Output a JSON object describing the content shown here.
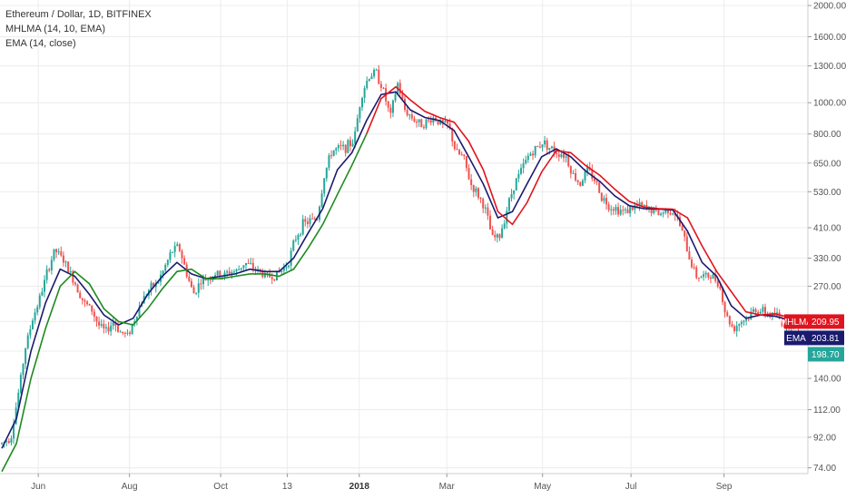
{
  "legend": {
    "title": "Ethereum / Dollar, 1D, BITFINEX",
    "line2": "MHLMA (14, 10, EMA)",
    "line3": "EMA (14, close)"
  },
  "chart_data": {
    "type": "line",
    "yscale": "log",
    "ylim": [
      71,
      2080
    ],
    "grid": true,
    "y_ticks": [
      "74.00",
      "92.00",
      "112.00",
      "140.00",
      "170.00",
      "210.00",
      "270.00",
      "330.00",
      "410.00",
      "530.00",
      "650.00",
      "800.00",
      "1000.00",
      "1300.00",
      "1600.00",
      "2000.00"
    ],
    "x_ticks": [
      {
        "label": "Jun",
        "bold": false
      },
      {
        "label": "Aug",
        "bold": false
      },
      {
        "label": "Oct",
        "bold": false
      },
      {
        "label": "13",
        "bold": false
      },
      {
        "label": "2018",
        "bold": true
      },
      {
        "label": "Mar",
        "bold": false
      },
      {
        "label": "May",
        "bold": false
      },
      {
        "label": "Jul",
        "bold": false
      },
      {
        "label": "Sep",
        "bold": false
      }
    ],
    "x_ticks_index": [
      40,
      140,
      240,
      313,
      392,
      488,
      593,
      690,
      792
    ],
    "x_range_index": [
      0,
      880
    ],
    "colors": {
      "up": "#26a69a",
      "down": "#ef5350",
      "ema": "#1a1a6e",
      "mhlma_up": "#1f8a1f",
      "mhlma_down": "#e0141e"
    },
    "close_series": [
      [
        0,
        88
      ],
      [
        10,
        92
      ],
      [
        18,
        125
      ],
      [
        26,
        175
      ],
      [
        34,
        215
      ],
      [
        42,
        250
      ],
      [
        50,
        300
      ],
      [
        58,
        350
      ],
      [
        66,
        330
      ],
      [
        74,
        300
      ],
      [
        82,
        270
      ],
      [
        90,
        240
      ],
      [
        98,
        230
      ],
      [
        106,
        205
      ],
      [
        114,
        195
      ],
      [
        122,
        210
      ],
      [
        130,
        195
      ],
      [
        138,
        190
      ],
      [
        146,
        215
      ],
      [
        154,
        245
      ],
      [
        162,
        265
      ],
      [
        170,
        275
      ],
      [
        178,
        305
      ],
      [
        186,
        345
      ],
      [
        194,
        360
      ],
      [
        202,
        300
      ],
      [
        210,
        255
      ],
      [
        218,
        280
      ],
      [
        226,
        285
      ],
      [
        234,
        295
      ],
      [
        242,
        290
      ],
      [
        250,
        300
      ],
      [
        258,
        300
      ],
      [
        266,
        320
      ],
      [
        274,
        310
      ],
      [
        282,
        300
      ],
      [
        290,
        290
      ],
      [
        298,
        290
      ],
      [
        306,
        300
      ],
      [
        314,
        320
      ],
      [
        322,
        380
      ],
      [
        330,
        420
      ],
      [
        338,
        430
      ],
      [
        346,
        440
      ],
      [
        354,
        600
      ],
      [
        362,
        710
      ],
      [
        370,
        720
      ],
      [
        378,
        730
      ],
      [
        386,
        760
      ],
      [
        394,
        1050
      ],
      [
        402,
        1200
      ],
      [
        410,
        1250
      ],
      [
        418,
        1100
      ],
      [
        426,
        900
      ],
      [
        434,
        1150
      ],
      [
        442,
        950
      ],
      [
        450,
        900
      ],
      [
        458,
        860
      ],
      [
        466,
        870
      ],
      [
        474,
        900
      ],
      [
        482,
        860
      ],
      [
        490,
        850
      ],
      [
        498,
        700
      ],
      [
        506,
        680
      ],
      [
        514,
        560
      ],
      [
        522,
        520
      ],
      [
        530,
        470
      ],
      [
        538,
        380
      ],
      [
        546,
        385
      ],
      [
        554,
        470
      ],
      [
        562,
        560
      ],
      [
        570,
        620
      ],
      [
        578,
        690
      ],
      [
        586,
        720
      ],
      [
        594,
        760
      ],
      [
        602,
        720
      ],
      [
        610,
        700
      ],
      [
        618,
        690
      ],
      [
        626,
        600
      ],
      [
        634,
        560
      ],
      [
        642,
        620
      ],
      [
        650,
        580
      ],
      [
        658,
        510
      ],
      [
        666,
        480
      ],
      [
        674,
        470
      ],
      [
        682,
        460
      ],
      [
        690,
        470
      ],
      [
        698,
        480
      ],
      [
        706,
        470
      ],
      [
        714,
        465
      ],
      [
        722,
        450
      ],
      [
        730,
        470
      ],
      [
        738,
        455
      ],
      [
        746,
        400
      ],
      [
        754,
        330
      ],
      [
        762,
        290
      ],
      [
        770,
        290
      ],
      [
        778,
        290
      ],
      [
        786,
        280
      ],
      [
        794,
        220
      ],
      [
        802,
        200
      ],
      [
        810,
        210
      ],
      [
        818,
        215
      ],
      [
        826,
        230
      ],
      [
        834,
        225
      ],
      [
        842,
        220
      ],
      [
        850,
        220
      ],
      [
        858,
        205
      ],
      [
        866,
        210
      ],
      [
        874,
        205
      ]
    ],
    "ema_series": [
      [
        0,
        85
      ],
      [
        16,
        105
      ],
      [
        32,
        170
      ],
      [
        48,
        240
      ],
      [
        64,
        305
      ],
      [
        80,
        290
      ],
      [
        96,
        255
      ],
      [
        112,
        220
      ],
      [
        128,
        205
      ],
      [
        144,
        215
      ],
      [
        160,
        255
      ],
      [
        176,
        290
      ],
      [
        192,
        320
      ],
      [
        208,
        295
      ],
      [
        224,
        285
      ],
      [
        240,
        290
      ],
      [
        256,
        295
      ],
      [
        272,
        305
      ],
      [
        288,
        300
      ],
      [
        304,
        300
      ],
      [
        320,
        330
      ],
      [
        336,
        395
      ],
      [
        352,
        470
      ],
      [
        368,
        620
      ],
      [
        384,
        700
      ],
      [
        400,
        880
      ],
      [
        416,
        1060
      ],
      [
        432,
        1080
      ],
      [
        448,
        950
      ],
      [
        464,
        900
      ],
      [
        480,
        880
      ],
      [
        496,
        820
      ],
      [
        512,
        680
      ],
      [
        528,
        560
      ],
      [
        544,
        440
      ],
      [
        560,
        460
      ],
      [
        576,
        560
      ],
      [
        592,
        680
      ],
      [
        608,
        720
      ],
      [
        624,
        680
      ],
      [
        640,
        615
      ],
      [
        656,
        570
      ],
      [
        672,
        515
      ],
      [
        688,
        480
      ],
      [
        704,
        470
      ],
      [
        720,
        468
      ],
      [
        736,
        465
      ],
      [
        752,
        400
      ],
      [
        768,
        320
      ],
      [
        784,
        290
      ],
      [
        800,
        235
      ],
      [
        816,
        215
      ],
      [
        832,
        220
      ],
      [
        848,
        218
      ],
      [
        864,
        212
      ],
      [
        880,
        205
      ]
    ],
    "mhlma_series": [
      [
        0,
        72
      ],
      [
        16,
        88
      ],
      [
        32,
        140
      ],
      [
        48,
        200
      ],
      [
        64,
        270
      ],
      [
        80,
        300
      ],
      [
        96,
        275
      ],
      [
        112,
        230
      ],
      [
        128,
        210
      ],
      [
        144,
        205
      ],
      [
        160,
        230
      ],
      [
        176,
        265
      ],
      [
        192,
        300
      ],
      [
        208,
        305
      ],
      [
        224,
        285
      ],
      [
        240,
        285
      ],
      [
        256,
        290
      ],
      [
        272,
        295
      ],
      [
        288,
        295
      ],
      [
        304,
        290
      ],
      [
        320,
        305
      ],
      [
        336,
        355
      ],
      [
        352,
        420
      ],
      [
        368,
        520
      ],
      [
        384,
        640
      ],
      [
        400,
        800
      ],
      [
        416,
        1030
      ],
      [
        432,
        1120
      ],
      [
        448,
        1020
      ],
      [
        464,
        940
      ],
      [
        480,
        900
      ],
      [
        496,
        870
      ],
      [
        512,
        760
      ],
      [
        528,
        620
      ],
      [
        544,
        460
      ],
      [
        560,
        420
      ],
      [
        576,
        490
      ],
      [
        592,
        610
      ],
      [
        608,
        710
      ],
      [
        624,
        700
      ],
      [
        640,
        640
      ],
      [
        656,
        595
      ],
      [
        672,
        540
      ],
      [
        688,
        495
      ],
      [
        704,
        475
      ],
      [
        720,
        470
      ],
      [
        736,
        468
      ],
      [
        752,
        440
      ],
      [
        768,
        360
      ],
      [
        784,
        300
      ],
      [
        800,
        260
      ],
      [
        816,
        225
      ],
      [
        832,
        220
      ],
      [
        848,
        222
      ],
      [
        864,
        216
      ],
      [
        880,
        210
      ]
    ],
    "mhlma_down_from_index": 400,
    "price_labels": [
      {
        "name": "MHLMA",
        "value": "209.95",
        "color": "#e0141e",
        "price": 209.95
      },
      {
        "name": "EMA",
        "value": "203.81",
        "color": "#1a1a6e",
        "price": 203.81
      },
      {
        "name": "",
        "value": "198.70",
        "color": "#26a69a",
        "price": 198.7
      }
    ]
  }
}
